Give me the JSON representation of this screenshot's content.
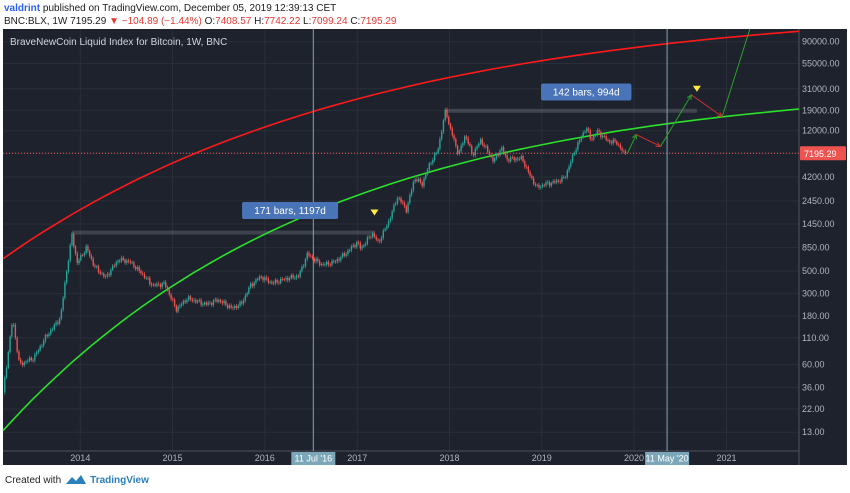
{
  "header": {
    "author": "valdrint",
    "published_text": "published on TradingView.com, December 05, 2019 12:39:13 CET",
    "symbol": "BNC:BLX, 1W",
    "last": "7195.29",
    "change": "−104.89 (−1.44%)",
    "ohlc": {
      "o_label": "O:",
      "o": "7408.57",
      "h_label": "H:",
      "h": "7742.22",
      "l_label": "L:",
      "l": "7099.24",
      "c_label": "C:",
      "c": "7195.29"
    }
  },
  "footer": {
    "created_with": "Created with",
    "brand": "TradingView"
  },
  "colors": {
    "background": "#1e222d",
    "grid": "#2a2e39",
    "up": "#26a69a",
    "down": "#ef5350",
    "upper_curve": "#ff1a1a",
    "lower_curve": "#2be02b",
    "price_label": "#ef5350",
    "vline": "#7ca7b8",
    "measure_label": "#4a74b8",
    "marker": "#ffeb3b",
    "projection_up": "#2ca02c",
    "projection_down": "#d32f2f"
  },
  "chart_data": {
    "type": "candlestick",
    "title": "BraveNewCoin Liquid Index for Bitcoin, 1W, BNC",
    "y_scale": "log",
    "ylim": [
      8.5,
      120000
    ],
    "xlim": [
      "2013-03-01",
      "2021-10-15"
    ],
    "x_ticks": [
      {
        "label": "2014",
        "date": "2014-01-01"
      },
      {
        "label": "2015",
        "date": "2015-01-01"
      },
      {
        "label": "2016",
        "date": "2016-01-01"
      },
      {
        "label": "2017",
        "date": "2017-01-01"
      },
      {
        "label": "2018",
        "date": "2018-01-01"
      },
      {
        "label": "2019",
        "date": "2019-01-01"
      },
      {
        "label": "2020",
        "date": "2020-01-01"
      },
      {
        "label": "2021",
        "date": "2021-01-01"
      }
    ],
    "y_ticks": [
      13,
      22,
      36,
      60,
      110,
      180,
      300,
      500,
      850,
      1450,
      2450,
      4200,
      7195.29,
      12000,
      19000,
      31000,
      55000,
      90000
    ],
    "y_tick_labels": [
      "13.00",
      "22.00",
      "36.00",
      "60.00",
      "110.00",
      "180.00",
      "300.00",
      "500.00",
      "850.00",
      "1450.00",
      "2450.00",
      "4200.00",
      "7195.29",
      "12000.00",
      "19000.00",
      "31000.00",
      "55000.00",
      "90000.00"
    ],
    "last_price": 7195.29,
    "price_path": [
      [
        "2013-03-01",
        32
      ],
      [
        "2013-04-08",
        170
      ],
      [
        "2013-05-05",
        60
      ],
      [
        "2013-07-01",
        70
      ],
      [
        "2013-08-15",
        110
      ],
      [
        "2013-10-15",
        175
      ],
      [
        "2013-11-01",
        380
      ],
      [
        "2013-11-29",
        1130
      ],
      [
        "2013-12-20",
        600
      ],
      [
        "2014-01-25",
        850
      ],
      [
        "2014-02-25",
        560
      ],
      [
        "2014-04-10",
        430
      ],
      [
        "2014-06-01",
        650
      ],
      [
        "2014-07-15",
        620
      ],
      [
        "2014-08-30",
        480
      ],
      [
        "2014-10-15",
        360
      ],
      [
        "2014-12-01",
        375
      ],
      [
        "2015-01-15",
        210
      ],
      [
        "2015-03-01",
        270
      ],
      [
        "2015-05-15",
        235
      ],
      [
        "2015-07-01",
        260
      ],
      [
        "2015-08-25",
        215
      ],
      [
        "2015-10-01",
        240
      ],
      [
        "2015-11-05",
        360
      ],
      [
        "2015-12-15",
        440
      ],
      [
        "2016-02-01",
        380
      ],
      [
        "2016-03-15",
        415
      ],
      [
        "2016-05-15",
        450
      ],
      [
        "2016-06-18",
        740
      ],
      [
        "2016-07-11",
        660
      ],
      [
        "2016-08-15",
        575
      ],
      [
        "2016-10-01",
        610
      ],
      [
        "2016-11-15",
        740
      ],
      [
        "2016-12-31",
        960
      ],
      [
        "2017-01-15",
        830
      ],
      [
        "2017-03-01",
        1180
      ],
      [
        "2017-03-25",
        950
      ],
      [
        "2017-05-01",
        1450
      ],
      [
        "2017-06-10",
        2700
      ],
      [
        "2017-07-15",
        2000
      ],
      [
        "2017-08-15",
        4100
      ],
      [
        "2017-09-15",
        3600
      ],
      [
        "2017-10-15",
        5700
      ],
      [
        "2017-11-15",
        7600
      ],
      [
        "2017-12-17",
        19500
      ],
      [
        "2017-12-31",
        13500
      ],
      [
        "2018-02-06",
        7000
      ],
      [
        "2018-03-05",
        11000
      ],
      [
        "2018-04-01",
        6900
      ],
      [
        "2018-05-05",
        9700
      ],
      [
        "2018-06-25",
        6000
      ],
      [
        "2018-07-25",
        8200
      ],
      [
        "2018-08-15",
        6300
      ],
      [
        "2018-10-15",
        6400
      ],
      [
        "2018-11-20",
        4100
      ],
      [
        "2018-12-15",
        3300
      ],
      [
        "2019-01-15",
        3600
      ],
      [
        "2019-02-15",
        3700
      ],
      [
        "2019-04-01",
        4100
      ],
      [
        "2019-05-15",
        8000
      ],
      [
        "2019-06-26",
        13000
      ],
      [
        "2019-07-15",
        9800
      ],
      [
        "2019-08-10",
        11800
      ],
      [
        "2019-09-20",
        9500
      ],
      [
        "2019-10-25",
        9200
      ],
      [
        "2019-11-25",
        7000
      ],
      [
        "2019-12-05",
        7195.29
      ]
    ],
    "curves": [
      {
        "name": "upper",
        "start": [
          "2013-03-01",
          660
        ],
        "end": [
          "2021-10-15",
          114000
        ],
        "bend": 2.2
      },
      {
        "name": "lower",
        "start": [
          "2013-03-01",
          13.5
        ],
        "end": [
          "2021-10-15",
          19600
        ],
        "bend": 2.5
      }
    ],
    "vertical_lines": [
      {
        "date": "2016-07-11",
        "label": "11 Jul '16"
      },
      {
        "date": "2020-05-11",
        "label": "11 May '20"
      }
    ],
    "measures": [
      {
        "label": "171 bars, 1197d",
        "from": "2013-11-29",
        "to": "2017-03-10",
        "low": 1180,
        "high": 1250,
        "label_at": [
          "2016-04-10",
          1950
        ]
      },
      {
        "label": "142 bars, 994d",
        "from": "2017-12-17",
        "to": "2020-09-06",
        "low": 18500,
        "high": 19700,
        "label_at": [
          "2019-06-26",
          28500
        ]
      }
    ],
    "markers": [
      {
        "date": "2017-03-10",
        "value": 1880
      },
      {
        "date": "2020-09-06",
        "value": 31000
      }
    ],
    "projections": [
      {
        "color": "up",
        "points": [
          [
            "2019-12-05",
            7100
          ],
          [
            "2020-01-10",
            11000
          ]
        ]
      },
      {
        "color": "down",
        "points": [
          [
            "2020-01-10",
            11000
          ],
          [
            "2020-04-15",
            8400
          ]
        ]
      },
      {
        "color": "up",
        "points": [
          [
            "2020-04-15",
            8400
          ],
          [
            "2020-08-15",
            27000
          ]
        ]
      },
      {
        "color": "down",
        "points": [
          [
            "2020-08-15",
            27000
          ],
          [
            "2020-12-15",
            16500
          ]
        ]
      },
      {
        "color": "up",
        "points": [
          [
            "2020-12-15",
            16500
          ],
          [
            "2021-04-10",
            135000
          ]
        ]
      }
    ]
  }
}
